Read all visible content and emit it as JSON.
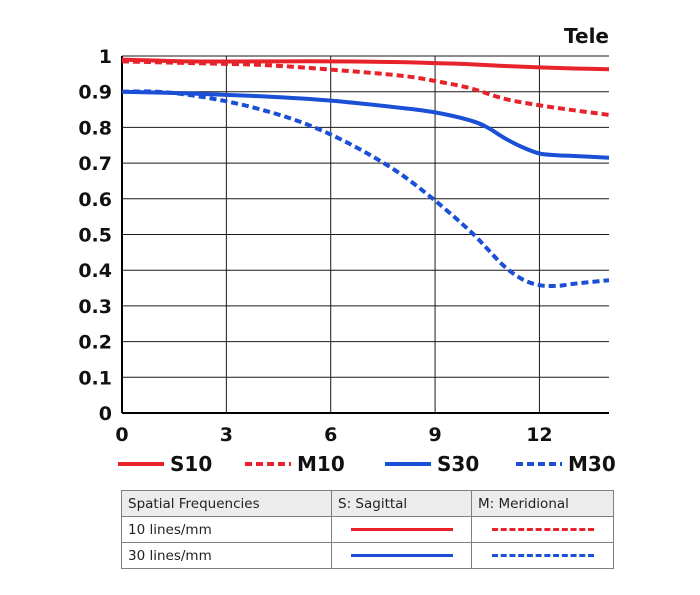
{
  "chart_data": {
    "type": "line",
    "title": "Tele",
    "xlabel": "",
    "ylabel": "",
    "xlim": [
      0,
      14
    ],
    "ylim": [
      0,
      1
    ],
    "xticks": [
      "0",
      "3",
      "6",
      "9",
      "12"
    ],
    "yticks": [
      "0",
      "0.1",
      "0.2",
      "0.3",
      "0.4",
      "0.5",
      "0.6",
      "0.7",
      "0.8",
      "0.9",
      "1"
    ],
    "grid": true,
    "legend_position": "bottom",
    "series": [
      {
        "name": "S10",
        "color": "#e8222a",
        "dash": "solid",
        "x": [
          0,
          2,
          4,
          6,
          8,
          9,
          10,
          11,
          12,
          13,
          14
        ],
        "y": [
          0.99,
          0.985,
          0.985,
          0.985,
          0.983,
          0.98,
          0.977,
          0.972,
          0.968,
          0.965,
          0.963
        ]
      },
      {
        "name": "M10",
        "color": "#e8222a",
        "dash": "dashed",
        "x": [
          0,
          2,
          4,
          6,
          8,
          9,
          10,
          11,
          12,
          13,
          14
        ],
        "y": [
          0.985,
          0.98,
          0.975,
          0.962,
          0.945,
          0.93,
          0.91,
          0.88,
          0.862,
          0.848,
          0.835
        ]
      },
      {
        "name": "S30",
        "color": "#1a4fd6",
        "dash": "solid",
        "x": [
          0,
          2,
          4,
          6,
          8,
          9,
          10,
          10.5,
          11,
          11.5,
          12,
          12.5,
          13,
          14
        ],
        "y": [
          0.9,
          0.895,
          0.887,
          0.875,
          0.855,
          0.842,
          0.82,
          0.8,
          0.77,
          0.745,
          0.727,
          0.722,
          0.72,
          0.715
        ]
      },
      {
        "name": "M30",
        "color": "#1a4fd6",
        "dash": "dashed",
        "x": [
          0,
          1,
          2,
          3,
          4,
          5,
          6,
          7,
          8,
          9,
          10,
          10.5,
          11,
          11.5,
          12,
          12.5,
          13,
          14
        ],
        "y": [
          0.9,
          0.9,
          0.89,
          0.873,
          0.85,
          0.82,
          0.78,
          0.73,
          0.67,
          0.595,
          0.51,
          0.46,
          0.41,
          0.375,
          0.358,
          0.356,
          0.362,
          0.372
        ]
      }
    ]
  },
  "key_table": {
    "header": [
      "Spatial Frequencies",
      "S: Sagittal",
      "M: Meridional"
    ],
    "rows": [
      {
        "label": "10 lines/mm",
        "color": "#e8222a"
      },
      {
        "label": "30 lines/mm",
        "color": "#1a4fd6"
      }
    ]
  }
}
